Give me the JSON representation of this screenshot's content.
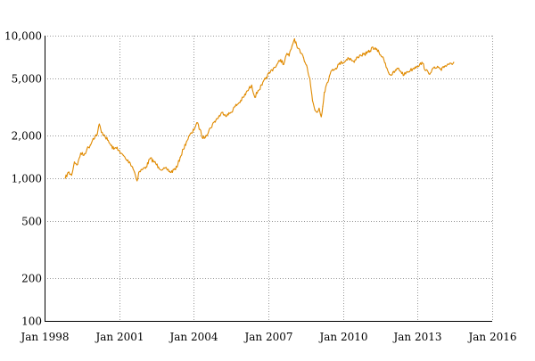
{
  "chart_data": {
    "type": "line",
    "title": "",
    "xlabel": "",
    "ylabel": "",
    "y_scale": "log",
    "grid": true,
    "legend": "none",
    "xlim": [
      "1998-01-01",
      "2016-01-01"
    ],
    "ylim": [
      100,
      10000
    ],
    "x_ticks": [
      {
        "value": "1998-01-01",
        "label": "Jan 1998"
      },
      {
        "value": "2001-01-01",
        "label": "Jan 2001"
      },
      {
        "value": "2004-01-01",
        "label": "Jan 2004"
      },
      {
        "value": "2007-01-01",
        "label": "Jan 2007"
      },
      {
        "value": "2010-01-01",
        "label": "Jan 2010"
      },
      {
        "value": "2013-01-01",
        "label": "Jan 2013"
      },
      {
        "value": "2016-01-01",
        "label": "Jan 2016"
      }
    ],
    "y_ticks": [
      {
        "value": 100,
        "label": "100"
      },
      {
        "value": 200,
        "label": "200"
      },
      {
        "value": 500,
        "label": "500"
      },
      {
        "value": 1000,
        "label": "1,000"
      },
      {
        "value": 2000,
        "label": "2,000"
      },
      {
        "value": 5000,
        "label": "5,000"
      },
      {
        "value": 10000,
        "label": "10,000"
      }
    ],
    "series": [
      {
        "color": "#e08a00",
        "x": [
          "1998-11-01",
          "1998-12-15",
          "1999-02-01",
          "1999-03-15",
          "1999-05-01",
          "1999-06-15",
          "1999-08-01",
          "1999-09-15",
          "1999-11-01",
          "1999-12-15",
          "2000-02-15",
          "2000-03-15",
          "2000-04-15",
          "2000-06-01",
          "2000-07-15",
          "2000-09-01",
          "2000-10-15",
          "2000-12-01",
          "2001-01-15",
          "2001-03-01",
          "2001-04-15",
          "2001-06-01",
          "2001-07-15",
          "2001-08-15",
          "2001-09-20",
          "2001-10-15",
          "2001-12-01",
          "2002-02-01",
          "2002-04-01",
          "2002-06-01",
          "2002-08-01",
          "2002-10-01",
          "2002-12-01",
          "2003-02-01",
          "2003-03-15",
          "2003-05-01",
          "2003-06-15",
          "2003-08-01",
          "2003-09-15",
          "2003-11-01",
          "2003-12-15",
          "2004-02-15",
          "2004-04-01",
          "2004-05-15",
          "2004-07-01",
          "2004-09-01",
          "2004-11-01",
          "2005-01-01",
          "2005-03-01",
          "2005-05-01",
          "2005-07-01",
          "2005-09-01",
          "2005-11-01",
          "2006-01-01",
          "2006-03-01",
          "2006-05-01",
          "2006-06-15",
          "2006-08-01",
          "2006-10-01",
          "2006-12-01",
          "2007-02-01",
          "2007-03-15",
          "2007-05-01",
          "2007-07-01",
          "2007-08-15",
          "2007-10-01",
          "2007-11-01",
          "2007-12-15",
          "2008-01-20",
          "2008-03-01",
          "2008-04-15",
          "2008-06-01",
          "2008-07-15",
          "2008-09-01",
          "2008-10-10",
          "2008-11-15",
          "2008-12-15",
          "2009-01-15",
          "2009-02-15",
          "2009-03-10",
          "2009-04-01",
          "2009-05-01",
          "2009-06-15",
          "2009-08-01",
          "2009-09-15",
          "2009-11-01",
          "2009-12-15",
          "2010-02-01",
          "2010-03-15",
          "2010-05-01",
          "2010-06-15",
          "2010-08-01",
          "2010-09-15",
          "2010-11-01",
          "2010-12-15",
          "2011-02-01",
          "2011-03-15",
          "2011-05-01",
          "2011-06-15",
          "2011-08-01",
          "2011-09-15",
          "2011-11-01",
          "2011-12-15",
          "2012-02-01",
          "2012-03-15",
          "2012-05-01",
          "2012-06-15",
          "2012-08-01",
          "2012-09-15",
          "2012-11-01",
          "2012-12-15",
          "2013-02-01",
          "2013-03-15",
          "2013-05-01",
          "2013-06-15",
          "2013-08-01",
          "2013-09-15",
          "2013-11-01",
          "2013-12-15",
          "2014-02-01",
          "2014-03-15",
          "2014-05-01",
          "2014-06-15"
        ],
        "y": [
          1000,
          1100,
          1050,
          1300,
          1250,
          1500,
          1450,
          1600,
          1700,
          1900,
          2050,
          2400,
          2100,
          2000,
          1850,
          1700,
          1600,
          1650,
          1500,
          1450,
          1350,
          1300,
          1200,
          1100,
          960,
          1100,
          1150,
          1200,
          1380,
          1300,
          1200,
          1150,
          1160,
          1100,
          1150,
          1200,
          1400,
          1600,
          1800,
          2000,
          2100,
          2450,
          2200,
          1900,
          2000,
          2250,
          2500,
          2700,
          2900,
          2750,
          2900,
          3200,
          3400,
          3700,
          4100,
          4500,
          3700,
          4100,
          4500,
          5100,
          5600,
          5900,
          6200,
          6800,
          6300,
          7500,
          7200,
          8500,
          9500,
          8200,
          7600,
          7000,
          6200,
          5000,
          3500,
          3000,
          2900,
          3100,
          2700,
          3200,
          4000,
          4500,
          5200,
          5800,
          5900,
          6300,
          6500,
          6600,
          7000,
          6800,
          6500,
          7100,
          7300,
          7400,
          7500,
          7800,
          8300,
          8000,
          7600,
          7100,
          6400,
          5500,
          5300,
          5600,
          5900,
          5600,
          5300,
          5600,
          5700,
          5900,
          6100,
          6300,
          6400,
          5700,
          5400,
          5800,
          5900,
          6000,
          5700,
          6100,
          6300,
          6400,
          6500
        ]
      }
    ]
  }
}
